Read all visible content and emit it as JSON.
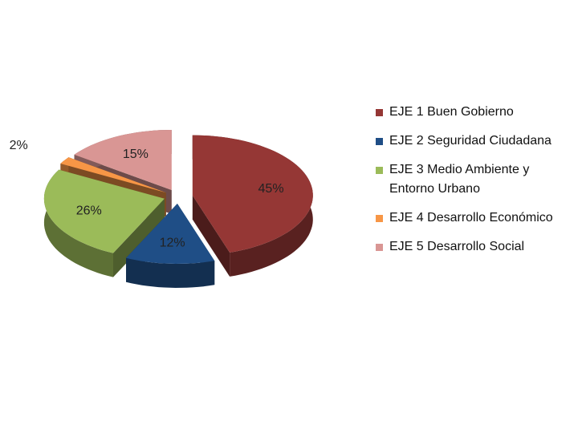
{
  "chart_data": {
    "type": "pie",
    "categories": [
      "EJE 1 Buen Gobierno",
      "EJE 2 Seguridad Ciudadana",
      "EJE 3 Medio Ambiente y Entorno Urbano",
      "EJE 4 Desarrollo Económico",
      "EJE 5 Desarrollo Social"
    ],
    "values": [
      45,
      12,
      26,
      2,
      15
    ],
    "value_labels": [
      "45%",
      "12%",
      "26%",
      "2%",
      "15%"
    ],
    "colors": [
      "#953735",
      "#1f4e86",
      "#9bbb59",
      "#f79646",
      "#d99694"
    ]
  }
}
